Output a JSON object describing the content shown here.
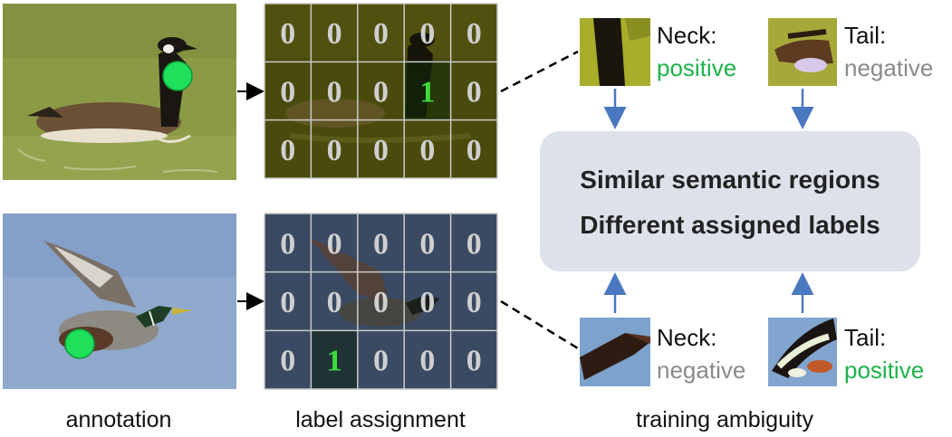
{
  "captions": {
    "annotation": "annotation",
    "label_assignment": "label assignment",
    "training_ambiguity": "training ambiguity"
  },
  "grid_top": {
    "rows": [
      [
        "0",
        "0",
        "0",
        "0",
        "0"
      ],
      [
        "0",
        "0",
        "0",
        "1",
        "0"
      ],
      [
        "0",
        "0",
        "0",
        "0",
        "0"
      ]
    ]
  },
  "grid_bottom": {
    "rows": [
      [
        "0",
        "0",
        "0",
        "0",
        "0"
      ],
      [
        "0",
        "0",
        "0",
        "0",
        "0"
      ],
      [
        "0",
        "1",
        "0",
        "0",
        "0"
      ]
    ]
  },
  "patches": {
    "top_left": {
      "part": "Neck:",
      "label": "positive"
    },
    "top_right": {
      "part": "Tail:",
      "label": "negative"
    },
    "bottom_left": {
      "part": "Neck:",
      "label": "negative"
    },
    "bottom_right": {
      "part": "Tail:",
      "label": "positive"
    }
  },
  "center_box": {
    "line1": "Similar semantic regions",
    "line2": "Different assigned labels"
  },
  "colors": {
    "positive": "#1db34a",
    "negative": "#8a8a8a",
    "active_digit": "#3ddc3d",
    "arrow": "#4a78c0",
    "box_fill": "#dde2ea"
  }
}
